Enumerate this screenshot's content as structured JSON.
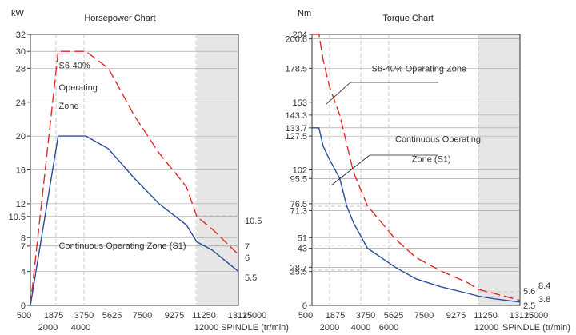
{
  "colors": {
    "s6_line": "#e02a2a",
    "s1_line": "#2a4d9c",
    "axis": "#333333",
    "grid": "#999999",
    "guide": "#bbbbbb",
    "shade": "#e6e6e6"
  },
  "chart_data": [
    {
      "type": "line",
      "title": "Horsepower Chart",
      "ylabel": "kW",
      "xlabel": "SPINDLE (tr/min)",
      "xlim": [
        0,
        15000
      ],
      "ylim": [
        0,
        32
      ],
      "xticks_row1": [
        "500",
        "1875",
        "3750",
        "5625",
        "7500",
        "9275",
        "11250",
        "13125",
        "15000"
      ],
      "xticks_row2": [
        "2000",
        "4000",
        "12000"
      ],
      "yticks": [
        "0",
        "4",
        "7",
        "8",
        "10.5",
        "12",
        "16",
        "20",
        "24",
        "28",
        "30",
        "32"
      ],
      "right_labels": [
        "10.5",
        "7",
        "6",
        "5.5"
      ],
      "shaded_range": [
        12000,
        15000
      ],
      "series": [
        {
          "name": "",
          "style": "dashed",
          "color_key": "s6_line",
          "x": [
            0,
            2000,
            3750,
            4000,
            5625,
            7500,
            9275,
            11250,
            12000,
            13125,
            15000
          ],
          "y": [
            0,
            30,
            30,
            30,
            28,
            22.4,
            18,
            14,
            10.5,
            9,
            6
          ]
        },
        {
          "name": "",
          "style": "solid",
          "color_key": "s1_line",
          "x": [
            0,
            2000,
            3750,
            4000,
            5625,
            7500,
            9275,
            11250,
            12000,
            13125,
            15000
          ],
          "y": [
            0,
            20,
            20,
            20,
            18.5,
            15,
            12,
            9.5,
            7.5,
            6.5,
            4
          ]
        }
      ],
      "annotations": [
        {
          "text": "S6-40%",
          "x": 2050,
          "y": 28
        },
        {
          "text": "Operating",
          "x": 2050,
          "y": 25.4
        },
        {
          "text": "Zone",
          "x": 2050,
          "y": 23.2
        },
        {
          "text": "Continuous Operating Zone (S1)",
          "x": 2050,
          "y": 6.7
        }
      ]
    },
    {
      "type": "line",
      "title": "Torque Chart",
      "ylabel": "Nm",
      "xlabel": "SPINDLE (tr/min)",
      "xlim": [
        0,
        15000
      ],
      "ylim": [
        0,
        204
      ],
      "xticks_row1": [
        "500",
        "1875",
        "3750",
        "5625",
        "7500",
        "9275",
        "11250",
        "13125",
        "15000"
      ],
      "xticks_row2": [
        "2000",
        "4000",
        "6000",
        "12000"
      ],
      "yticks": [
        "0",
        "25.5",
        "28.7",
        "43",
        "51",
        "71.3",
        "76.5",
        "95.5",
        "102",
        "127.5",
        "133.7",
        "143.3",
        "153",
        "178.5",
        "200.6",
        "204"
      ],
      "right_labels": [
        "8.4",
        "5.6",
        "3.8",
        "2.5"
      ],
      "shaded_range": [
        12000,
        15000
      ],
      "series": [
        {
          "name": "",
          "style": "dashed",
          "color_key": "s6_line",
          "x": [
            0,
            500,
            800,
            1250,
            2000,
            3000,
            4000,
            6000,
            7500,
            9275,
            11250,
            12000,
            13125,
            15000
          ],
          "y": [
            204,
            204,
            185,
            165,
            143.3,
            100,
            75,
            50,
            36,
            26,
            17,
            12,
            9,
            3.8
          ]
        },
        {
          "name": "",
          "style": "solid",
          "color_key": "s1_line",
          "x": [
            0,
            500,
            800,
            1250,
            2000,
            2500,
            3000,
            4000,
            6000,
            7500,
            9275,
            11250,
            12000,
            13125,
            15000
          ],
          "y": [
            133.7,
            133.7,
            120,
            110,
            95.5,
            75,
            62,
            43,
            28.7,
            20,
            14,
            9,
            7,
            5,
            2.5
          ]
        }
      ],
      "annotations": [
        {
          "text": "S6-40%  Operating Zone",
          "x": 4300,
          "y": 176
        },
        {
          "text": "Continuous Operating",
          "x": 6000,
          "y": 123
        },
        {
          "text": "Zone (S1)",
          "x": 7200,
          "y": 108
        }
      ]
    }
  ]
}
